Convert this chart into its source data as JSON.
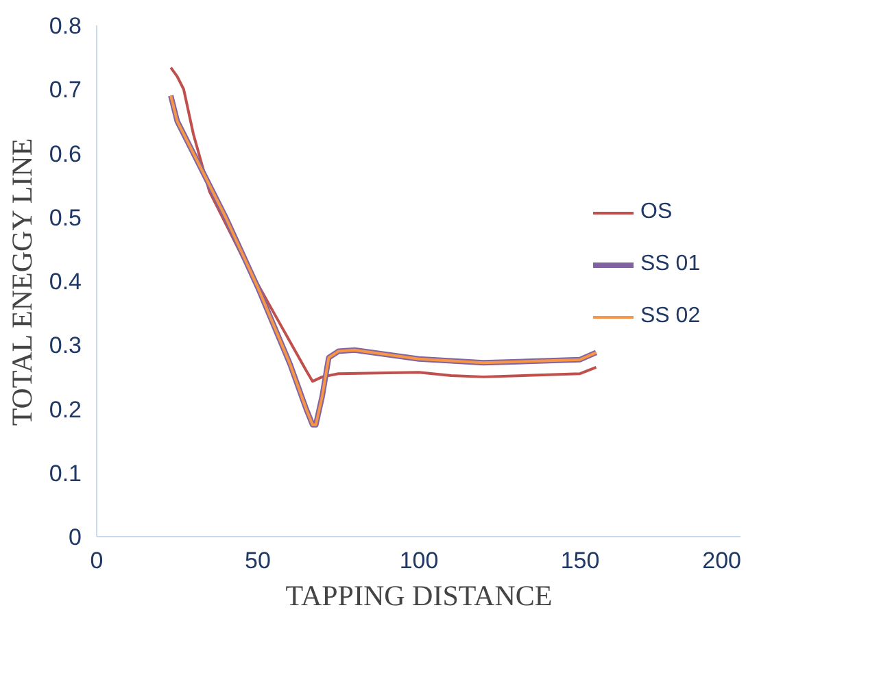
{
  "chart_data": {
    "type": "line",
    "xlabel": "TAPPING DISTANCE",
    "ylabel": "TOTAL ENEGGY LINE",
    "xlim": [
      0,
      200
    ],
    "xticks": [
      0,
      50,
      100,
      150,
      200
    ],
    "ylim": [
      0,
      0.8
    ],
    "yticks": [
      0,
      0.1,
      0.2,
      0.3,
      0.4,
      0.5,
      0.6,
      0.7,
      0.8
    ],
    "grid": false,
    "legend": "right",
    "marker": "none",
    "line_style": "solid",
    "series": [
      {
        "name": "OS",
        "color": "#c0504d",
        "x": [
          23,
          25,
          27,
          30,
          35,
          45,
          55,
          65,
          67,
          70,
          75,
          100,
          110,
          120,
          150,
          155
        ],
        "values": [
          0.734,
          0.72,
          0.7,
          0.63,
          0.54,
          0.44,
          0.35,
          0.26,
          0.243,
          0.25,
          0.255,
          0.257,
          0.252,
          0.25,
          0.255,
          0.265
        ]
      },
      {
        "name": "SS 01",
        "color": "#8064a2",
        "x": [
          23,
          25,
          30,
          40,
          50,
          60,
          65,
          67,
          68,
          70,
          72,
          75,
          80,
          100,
          120,
          150,
          155
        ],
        "values": [
          0.69,
          0.65,
          0.6,
          0.5,
          0.39,
          0.27,
          0.2,
          0.175,
          0.175,
          0.22,
          0.28,
          0.29,
          0.292,
          0.278,
          0.272,
          0.277,
          0.288
        ]
      },
      {
        "name": "SS 02",
        "color": "#f79646",
        "x": [
          23,
          25,
          30,
          40,
          50,
          60,
          65,
          67,
          68,
          70,
          72,
          75,
          80,
          100,
          120,
          150,
          155
        ],
        "values": [
          0.69,
          0.65,
          0.6,
          0.5,
          0.39,
          0.27,
          0.2,
          0.175,
          0.175,
          0.22,
          0.28,
          0.29,
          0.292,
          0.278,
          0.272,
          0.277,
          0.288
        ]
      }
    ]
  }
}
